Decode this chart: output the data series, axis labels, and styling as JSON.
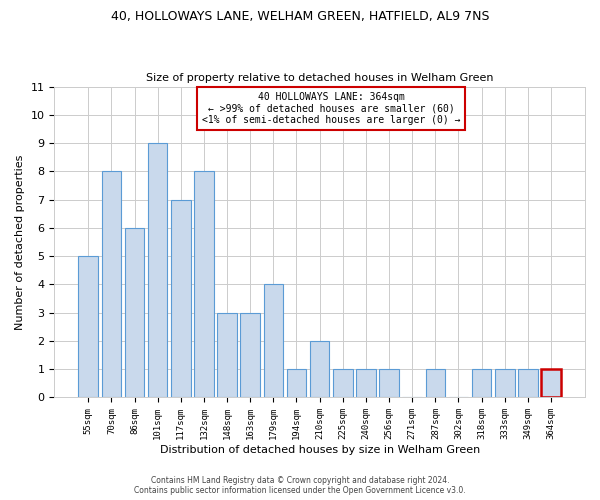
{
  "title": "40, HOLLOWAYS LANE, WELHAM GREEN, HATFIELD, AL9 7NS",
  "subtitle": "Size of property relative to detached houses in Welham Green",
  "xlabel": "Distribution of detached houses by size in Welham Green",
  "ylabel": "Number of detached properties",
  "categories": [
    "55sqm",
    "70sqm",
    "86sqm",
    "101sqm",
    "117sqm",
    "132sqm",
    "148sqm",
    "163sqm",
    "179sqm",
    "194sqm",
    "210sqm",
    "225sqm",
    "240sqm",
    "256sqm",
    "271sqm",
    "287sqm",
    "302sqm",
    "318sqm",
    "333sqm",
    "349sqm",
    "364sqm"
  ],
  "values": [
    5,
    8,
    6,
    9,
    7,
    8,
    3,
    3,
    4,
    1,
    2,
    1,
    1,
    1,
    0,
    1,
    0,
    1,
    1,
    1,
    1
  ],
  "bar_color": "#c9d9ec",
  "bar_edge_color": "#5b9bd5",
  "highlight_index": 20,
  "highlight_bar_edge_color": "#cc0000",
  "annotation_text": "40 HOLLOWAYS LANE: 364sqm\n← >99% of detached houses are smaller (60)\n<1% of semi-detached houses are larger (0) →",
  "annotation_box_edge_color": "#cc0000",
  "ylim": [
    0,
    11
  ],
  "yticks": [
    0,
    1,
    2,
    3,
    4,
    5,
    6,
    7,
    8,
    9,
    10,
    11
  ],
  "background_color": "#ffffff",
  "footer_line1": "Contains HM Land Registry data © Crown copyright and database right 2024.",
  "footer_line2": "Contains public sector information licensed under the Open Government Licence v3.0."
}
